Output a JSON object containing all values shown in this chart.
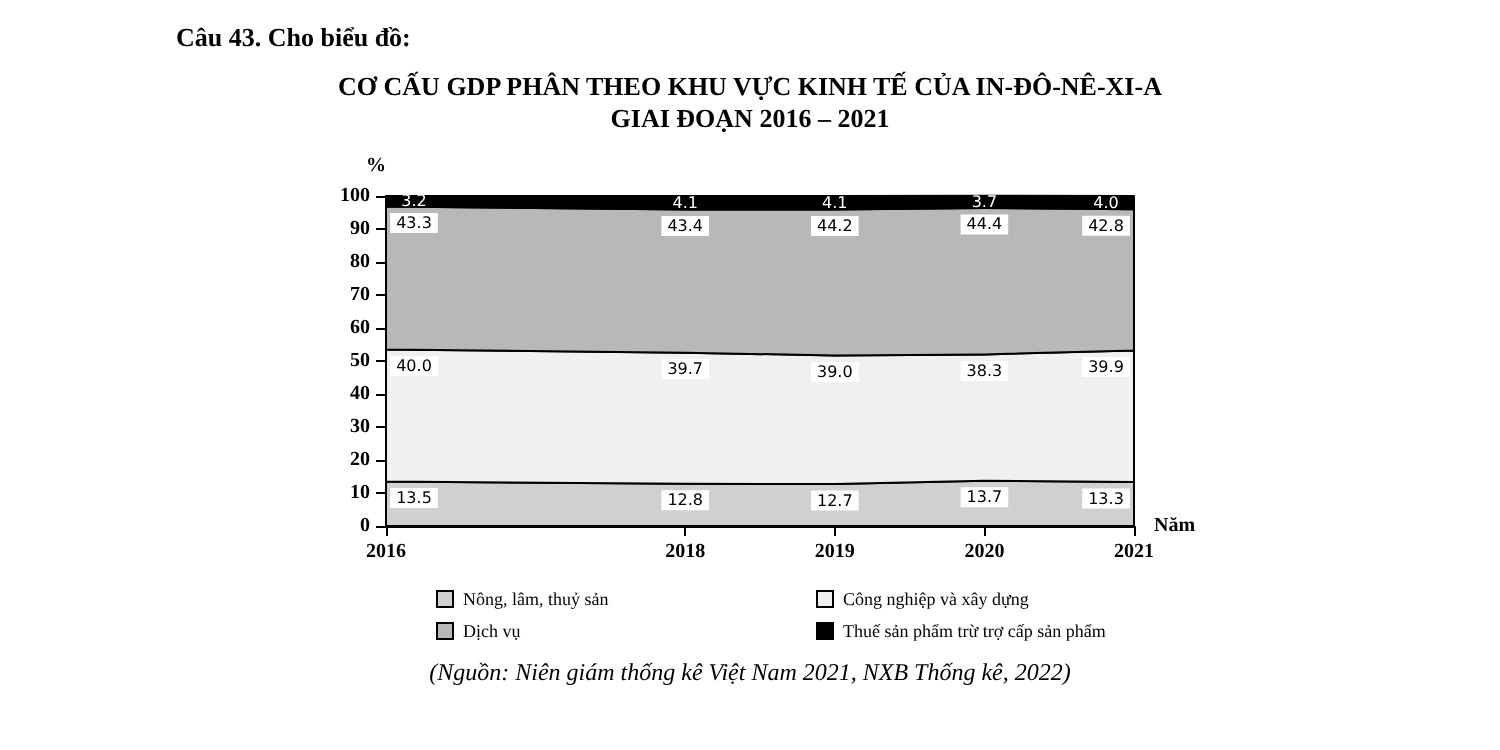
{
  "chart_data": {
    "type": "area",
    "stacked": true,
    "title": "CƠ CẤU GDP PHÂN THEO KHU VỰC KINH TẾ CỦA IN-ĐÔ-NÊ-XI-A\nGIAI ĐOẠN 2016 – 2021",
    "xlabel": "Năm",
    "ylabel": "%",
    "x": [
      2016,
      2018,
      2019,
      2020,
      2021
    ],
    "xlim": [
      2016,
      2021
    ],
    "xticks": [
      2016,
      2018,
      2019,
      2020,
      2021
    ],
    "ylim": [
      0,
      100
    ],
    "yticks": [
      0,
      10,
      20,
      30,
      40,
      50,
      60,
      70,
      80,
      90,
      100
    ],
    "series": [
      {
        "name": "Nông, lâm, thuỷ sản",
        "color": "#d0d0d0",
        "values": [
          13.5,
          12.8,
          12.7,
          13.7,
          13.3
        ],
        "value_labels": [
          "13.5",
          "12.8",
          "12.7",
          "13.7",
          "13.3"
        ]
      },
      {
        "name": "Công nghiệp và xây dựng",
        "color": "#f0f0f0",
        "values": [
          40.0,
          39.7,
          39.0,
          38.3,
          39.9
        ],
        "value_labels": [
          "40.0",
          "39.7",
          "39.0",
          "38.3",
          "39.9"
        ]
      },
      {
        "name": "Dịch vụ",
        "color": "#b8b8b8",
        "values": [
          43.3,
          43.4,
          44.2,
          44.4,
          42.8
        ],
        "value_labels": [
          "43.3",
          "43.4",
          "44.2",
          "44.4",
          "42.8"
        ]
      },
      {
        "name": "Thuế sản phẩm trừ trợ cấp sản phẩm",
        "color": "#000000",
        "values": [
          3.2,
          4.1,
          4.1,
          3.7,
          4.0
        ],
        "value_labels": [
          "3.2",
          "4.1",
          "4.1",
          "3.7",
          "4.0"
        ]
      }
    ],
    "legend": "bottom",
    "grid": false,
    "annotations": [
      "Câu 43. Cho biểu đồ:",
      "(Nguồn: Niên giám thống kê Việt Nam 2021, NXB Thống kê, 2022)"
    ]
  }
}
